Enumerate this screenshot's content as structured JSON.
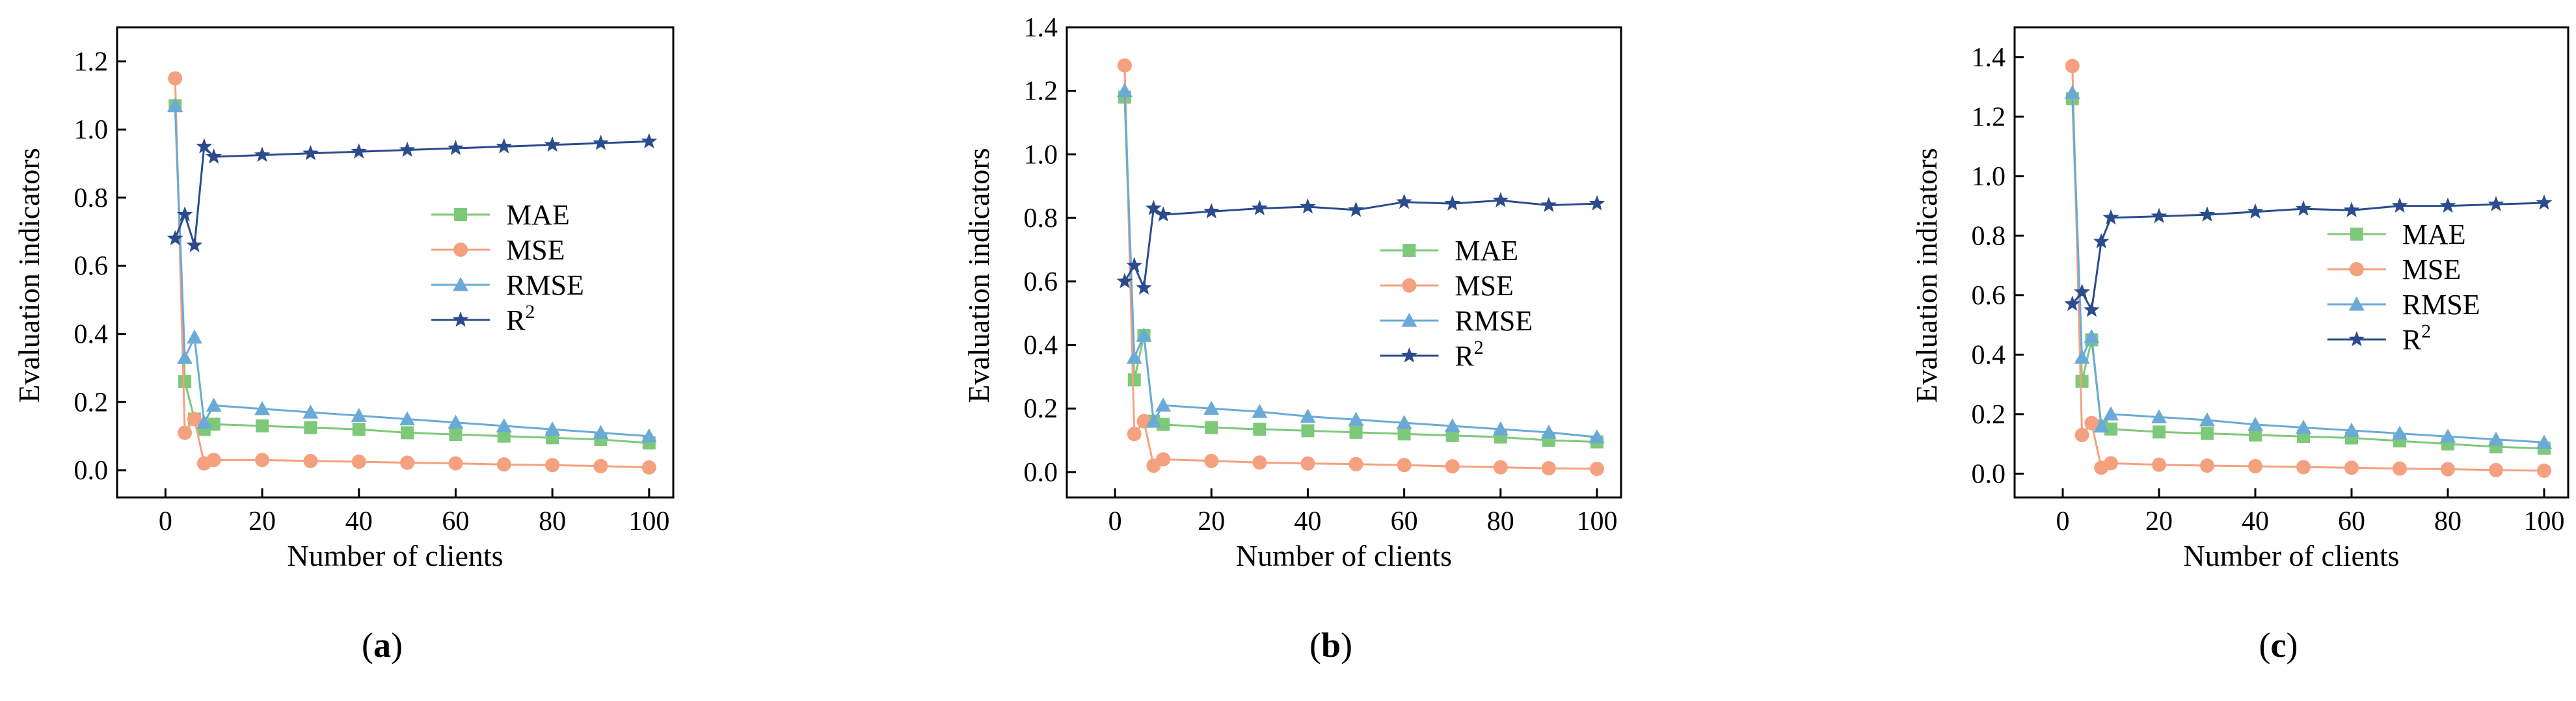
{
  "colors": {
    "MAE": "#7ec87a",
    "MSE": "#f5a07f",
    "RMSE": "#6aaad6",
    "R2": "#2b4c8c",
    "axis": "#000000"
  },
  "markers": {
    "MAE": "square",
    "MSE": "circle",
    "RMSE": "triangle",
    "R2": "star"
  },
  "chart_data": [
    {
      "type": "line",
      "panel_label": "(a)",
      "xlabel": "Number of clients",
      "ylabel": "Evaluation indicators",
      "xlim": [
        -10,
        105
      ],
      "ylim": [
        -0.08,
        1.3
      ],
      "xticks": [
        0,
        20,
        40,
        60,
        80,
        100
      ],
      "yticks": [
        0.0,
        0.2,
        0.4,
        0.6,
        0.8,
        1.0,
        1.2
      ],
      "ytick_labels": [
        "0.0",
        "0.2",
        "0.4",
        "0.6",
        "0.8",
        "1.0",
        "1.2"
      ],
      "legend_position": "right",
      "x": [
        2,
        4,
        6,
        8,
        10,
        20,
        30,
        40,
        50,
        60,
        70,
        80,
        90,
        100
      ],
      "series": [
        {
          "name": "MAE",
          "values": [
            1.07,
            0.26,
            0.15,
            0.12,
            0.135,
            0.13,
            0.125,
            0.12,
            0.11,
            0.105,
            0.1,
            0.095,
            0.09,
            0.08
          ]
        },
        {
          "name": "MSE",
          "values": [
            1.15,
            0.11,
            0.15,
            0.02,
            0.03,
            0.03,
            0.027,
            0.025,
            0.022,
            0.02,
            0.017,
            0.015,
            0.012,
            0.008
          ]
        },
        {
          "name": "RMSE",
          "values": [
            1.07,
            0.33,
            0.39,
            0.14,
            0.19,
            0.18,
            0.17,
            0.16,
            0.15,
            0.14,
            0.13,
            0.12,
            0.11,
            0.1
          ]
        },
        {
          "name": "R",
          "superscript": "2",
          "values": [
            0.68,
            0.75,
            0.66,
            0.95,
            0.92,
            0.925,
            0.93,
            0.935,
            0.94,
            0.945,
            0.95,
            0.955,
            0.96,
            0.965
          ]
        }
      ]
    },
    {
      "type": "line",
      "panel_label": "(b)",
      "xlabel": "Number of clients",
      "ylabel": "Evaluation indicators",
      "xlim": [
        -10,
        105
      ],
      "ylim": [
        -0.08,
        1.4
      ],
      "xticks": [
        0,
        20,
        40,
        60,
        80,
        100
      ],
      "yticks": [
        0.0,
        0.2,
        0.4,
        0.6,
        0.8,
        1.0,
        1.2,
        1.4
      ],
      "ytick_labels": [
        "0.0",
        "0.2",
        "0.4",
        "0.6",
        "0.8",
        "1.0",
        "1.2",
        "1.4"
      ],
      "legend_position": "right",
      "x": [
        2,
        4,
        6,
        8,
        10,
        20,
        30,
        40,
        50,
        60,
        70,
        80,
        90,
        100
      ],
      "series": [
        {
          "name": "MAE",
          "values": [
            1.18,
            0.29,
            0.43,
            0.16,
            0.15,
            0.14,
            0.135,
            0.13,
            0.125,
            0.12,
            0.115,
            0.11,
            0.1,
            0.095
          ]
        },
        {
          "name": "MSE",
          "values": [
            1.28,
            0.12,
            0.16,
            0.02,
            0.04,
            0.035,
            0.03,
            0.027,
            0.025,
            0.022,
            0.018,
            0.015,
            0.012,
            0.01
          ]
        },
        {
          "name": "RMSE",
          "values": [
            1.2,
            0.36,
            0.43,
            0.16,
            0.21,
            0.2,
            0.19,
            0.175,
            0.165,
            0.155,
            0.145,
            0.135,
            0.125,
            0.11
          ]
        },
        {
          "name": "R",
          "superscript": "2",
          "values": [
            0.6,
            0.65,
            0.58,
            0.83,
            0.81,
            0.82,
            0.83,
            0.835,
            0.825,
            0.85,
            0.845,
            0.855,
            0.84,
            0.845
          ]
        }
      ]
    },
    {
      "type": "line",
      "panel_label": "(c)",
      "xlabel": "Number of clients",
      "ylabel": "Evaluation indicators",
      "xlim": [
        -10,
        105
      ],
      "ylim": [
        -0.08,
        1.5
      ],
      "xticks": [
        0,
        20,
        40,
        60,
        80,
        100
      ],
      "yticks": [
        0.0,
        0.2,
        0.4,
        0.6,
        0.8,
        1.0,
        1.2,
        1.4
      ],
      "ytick_labels": [
        "0.0",
        "0.2",
        "0.4",
        "0.6",
        "0.8",
        "1.0",
        "1.2",
        "1.4"
      ],
      "legend_position": "right",
      "x": [
        2,
        4,
        6,
        8,
        10,
        20,
        30,
        40,
        50,
        60,
        70,
        80,
        90,
        100
      ],
      "series": [
        {
          "name": "MAE",
          "values": [
            1.26,
            0.31,
            0.45,
            0.16,
            0.15,
            0.14,
            0.135,
            0.13,
            0.125,
            0.12,
            0.11,
            0.1,
            0.09,
            0.085
          ]
        },
        {
          "name": "MSE",
          "values": [
            1.37,
            0.13,
            0.17,
            0.02,
            0.035,
            0.03,
            0.027,
            0.025,
            0.022,
            0.02,
            0.017,
            0.015,
            0.012,
            0.01
          ]
        },
        {
          "name": "RMSE",
          "values": [
            1.28,
            0.39,
            0.46,
            0.16,
            0.2,
            0.19,
            0.18,
            0.165,
            0.155,
            0.145,
            0.135,
            0.125,
            0.115,
            0.105
          ]
        },
        {
          "name": "R",
          "superscript": "2",
          "values": [
            0.57,
            0.61,
            0.55,
            0.78,
            0.86,
            0.865,
            0.87,
            0.88,
            0.89,
            0.885,
            0.9,
            0.9,
            0.905,
            0.91
          ]
        }
      ]
    }
  ]
}
